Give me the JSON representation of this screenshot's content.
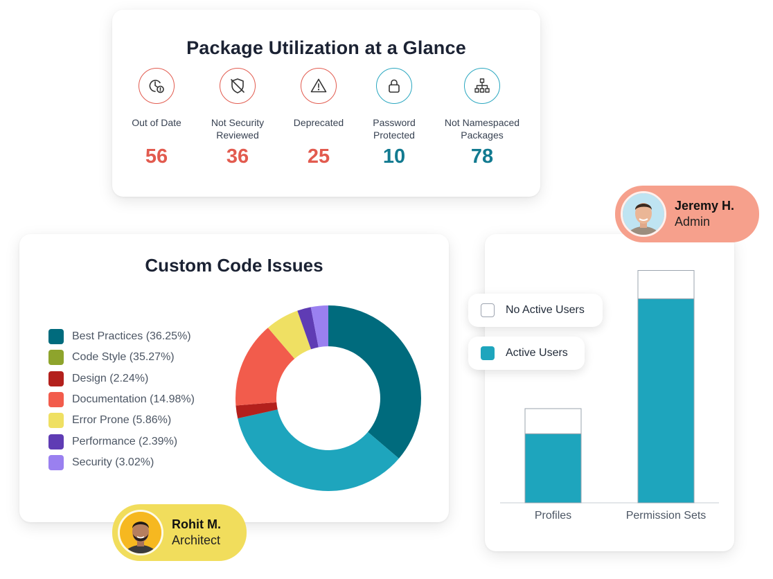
{
  "package_card": {
    "title": "Package Utilization at a Glance",
    "metrics": [
      {
        "label": "Out of Date",
        "value": "56",
        "icon": "clock-alert-icon",
        "color": "#e25b4f"
      },
      {
        "label": "Not Security Reviewed",
        "value": "36",
        "icon": "shield-off-icon",
        "color": "#e25b4f"
      },
      {
        "label": "Deprecated",
        "value": "25",
        "icon": "warning-triangle-icon",
        "color": "#e25b4f"
      },
      {
        "label": "Password Protected",
        "value": "10",
        "icon": "lock-icon",
        "color": "#127a90"
      },
      {
        "label": "Not Namespaced Packages",
        "value": "78",
        "icon": "hierarchy-icon",
        "color": "#127a90"
      }
    ]
  },
  "code_card": {
    "title": "Custom Code Issues",
    "legend": [
      {
        "label": "Best Practices (36.25%)",
        "color": "#006b7d"
      },
      {
        "label": "Code Style (35.27%)",
        "color": "#8ea42c"
      },
      {
        "label": "Design (2.24%)",
        "color": "#b3201c"
      },
      {
        "label": "Documentation (14.98%)",
        "color": "#f25c4c"
      },
      {
        "label": "Error Prone (5.86%)",
        "color": "#efe063"
      },
      {
        "label": "Performance (2.39%)",
        "color": "#5f3cb4"
      },
      {
        "label": "Security (3.02%)",
        "color": "#9a80f0"
      }
    ]
  },
  "bar_card": {
    "legend_no_active": "No Active Users",
    "legend_active": "Active Users"
  },
  "people": {
    "jeremy": {
      "name": "Jeremy H.",
      "role": "Admin"
    },
    "rohit": {
      "name": "Rohit M.",
      "role": "Architect"
    }
  },
  "chart_data": [
    {
      "type": "pie",
      "title": "Custom Code Issues",
      "categories": [
        "Best Practices",
        "Code Style",
        "Design",
        "Documentation",
        "Error Prone",
        "Performance",
        "Security"
      ],
      "values": [
        36.25,
        35.27,
        2.24,
        14.98,
        5.86,
        2.39,
        3.02
      ],
      "slice_colors": [
        "#006b7d",
        "#1ea5bd",
        "#b3201c",
        "#f25c4c",
        "#efe063",
        "#5f3cb4",
        "#9a80f0"
      ],
      "legend": "left"
    },
    {
      "type": "bar",
      "categories": [
        "Profiles",
        "Permission Sets"
      ],
      "series": [
        {
          "name": "Active Users",
          "values": [
            22,
            65
          ],
          "color": "#1ea5bd"
        },
        {
          "name": "No Active Users",
          "values": [
            8,
            9
          ],
          "color": "#ffffff"
        }
      ],
      "stacked": true,
      "ylim": [
        0,
        75
      ],
      "legend": "top-left"
    }
  ]
}
